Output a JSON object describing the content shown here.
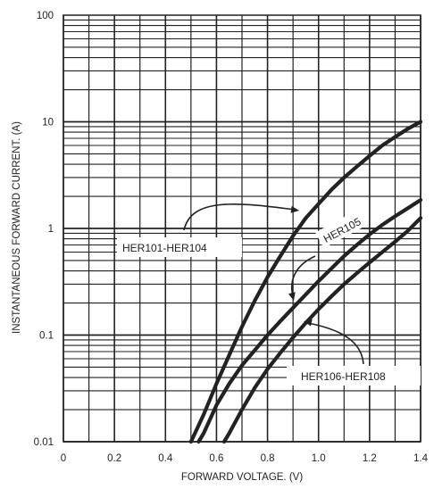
{
  "chart_data": {
    "type": "line",
    "xlabel": "FORWARD VOLTAGE. (V)",
    "ylabel": "INSTANTANEOUS FORWARD CURRENT. (A)",
    "xlim": [
      0,
      1.4
    ],
    "ylim": [
      0.01,
      100
    ],
    "yscale": "log",
    "grid": true,
    "x_ticks": [
      "0",
      "0.2",
      "0.4",
      "0.6",
      "0.8",
      "1.0",
      "1.2",
      "1.4"
    ],
    "y_ticks": [
      "0.01",
      "0.1",
      "1",
      "10",
      "100"
    ],
    "series": [
      {
        "name": "HER101-HER104",
        "x": [
          0.5,
          0.55,
          0.6,
          0.65,
          0.7,
          0.75,
          0.8,
          0.85,
          0.9,
          0.95,
          1.0,
          1.05,
          1.1,
          1.15,
          1.2,
          1.25,
          1.3,
          1.35,
          1.4
        ],
        "y": [
          0.01,
          0.018,
          0.035,
          0.065,
          0.12,
          0.21,
          0.35,
          0.55,
          0.85,
          1.25,
          1.7,
          2.3,
          3.0,
          3.8,
          4.8,
          6.0,
          7.2,
          8.6,
          10
        ]
      },
      {
        "name": "HER105",
        "x": [
          0.53,
          0.55,
          0.6,
          0.65,
          0.7,
          0.75,
          0.8,
          0.85,
          0.9,
          0.95,
          1.0,
          1.05,
          1.1,
          1.15,
          1.2,
          1.25,
          1.3,
          1.35,
          1.4
        ],
        "y": [
          0.01,
          0.012,
          0.022,
          0.035,
          0.052,
          0.072,
          0.1,
          0.135,
          0.18,
          0.24,
          0.32,
          0.42,
          0.55,
          0.7,
          0.88,
          1.08,
          1.3,
          1.55,
          1.85
        ]
      },
      {
        "name": "HER106-HER108",
        "x": [
          0.63,
          0.65,
          0.7,
          0.75,
          0.8,
          0.85,
          0.9,
          0.95,
          1.0,
          1.05,
          1.1,
          1.15,
          1.2,
          1.25,
          1.3,
          1.35,
          1.4
        ],
        "y": [
          0.01,
          0.012,
          0.02,
          0.032,
          0.048,
          0.068,
          0.095,
          0.13,
          0.175,
          0.23,
          0.3,
          0.38,
          0.48,
          0.6,
          0.75,
          0.95,
          1.25
        ]
      }
    ],
    "annotations": [
      {
        "text": "HER101-HER104",
        "target_series": 0
      },
      {
        "text": "HER105",
        "target_series": 1
      },
      {
        "text": "HER106-HER108",
        "target_series": 2
      }
    ]
  }
}
